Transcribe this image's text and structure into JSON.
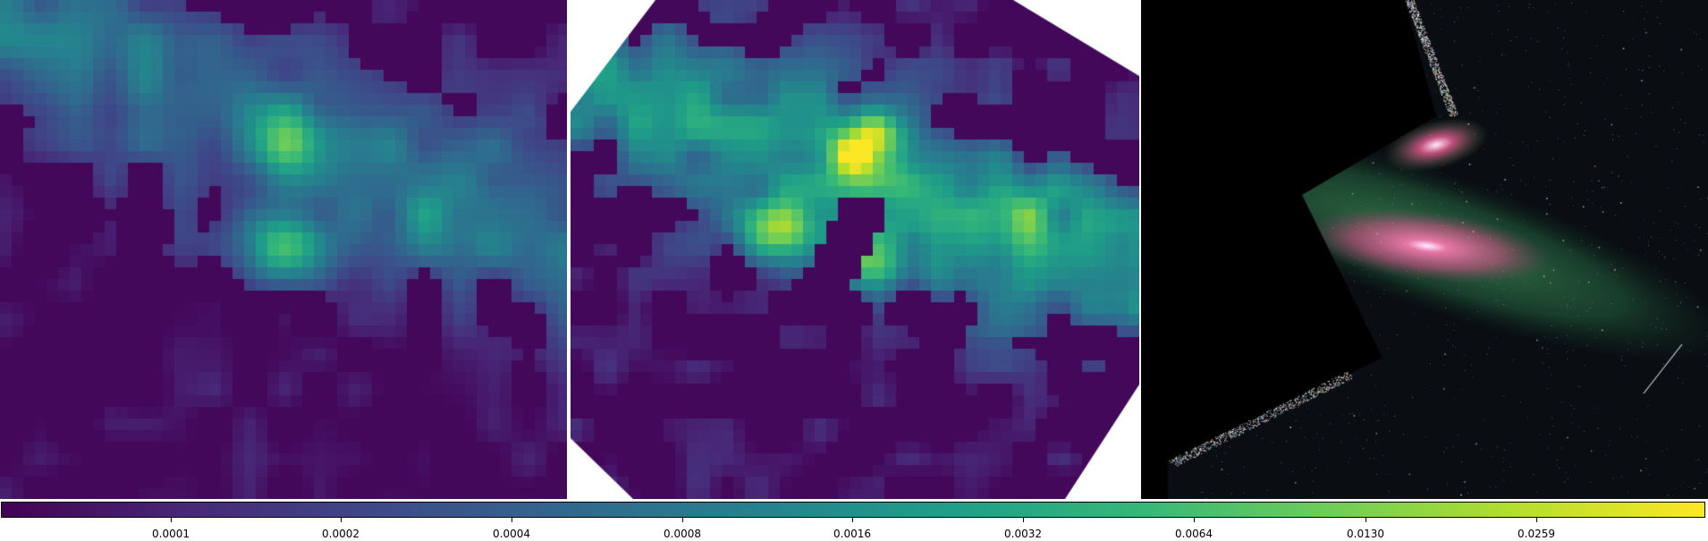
{
  "colormap": [
    "#440154",
    "#482878",
    "#3e4a89",
    "#31688e",
    "#26828e",
    "#1f9e89",
    "#35b779",
    "#6dcd59",
    "#b4de2c",
    "#fde725"
  ],
  "background_color": "#ffffff",
  "right_panel_background": "#000000",
  "colorbar": {
    "ticks": [
      "0.0001",
      "0.0002",
      "0.0004",
      "0.0008",
      "0.0016",
      "0.0032",
      "0.0064",
      "0.0130",
      "0.0259"
    ]
  }
}
